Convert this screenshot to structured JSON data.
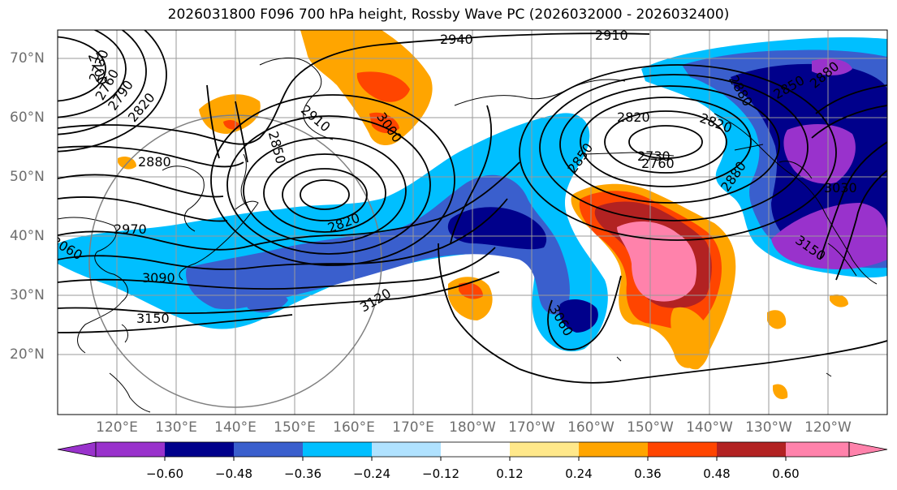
{
  "title": "2026031800 F096 700 hPa height, Rossby Wave PC (2026032000 - 2026032400)",
  "lat_labels": [
    "70°N",
    "60°N",
    "50°N",
    "40°N",
    "30°N",
    "20°N"
  ],
  "lon_labels": [
    "120°E",
    "130°E",
    "140°E",
    "150°E",
    "160°E",
    "170°E",
    "180°W",
    "170°W",
    "160°W",
    "150°W",
    "140°W",
    "130°W",
    "120°W"
  ],
  "contour_labels": [
    "2940",
    "2910",
    "2700",
    "2730",
    "2760",
    "2790",
    "2820",
    "2910",
    "2850",
    "3000",
    "2880",
    "2970",
    "3060",
    "3090",
    "3150",
    "2820",
    "3120",
    "3060",
    "2850",
    "2730",
    "2760",
    "2820",
    "2880",
    "2880",
    "3030",
    "3150",
    "2850",
    "2880",
    "2820"
  ],
  "colorbar": {
    "ticks": [
      "−0.60",
      "−0.48",
      "−0.36",
      "−0.24",
      "−0.12",
      "0.12",
      "0.24",
      "0.36",
      "0.48",
      "0.60"
    ],
    "colors": [
      "#9932cc",
      "#00008b",
      "#3a5fcd",
      "#00bfff",
      "#b0e2ff",
      "#ffffff",
      "#ffe88a",
      "#ffa500",
      "#ff4500",
      "#b22222",
      "#ff82ab"
    ]
  }
}
